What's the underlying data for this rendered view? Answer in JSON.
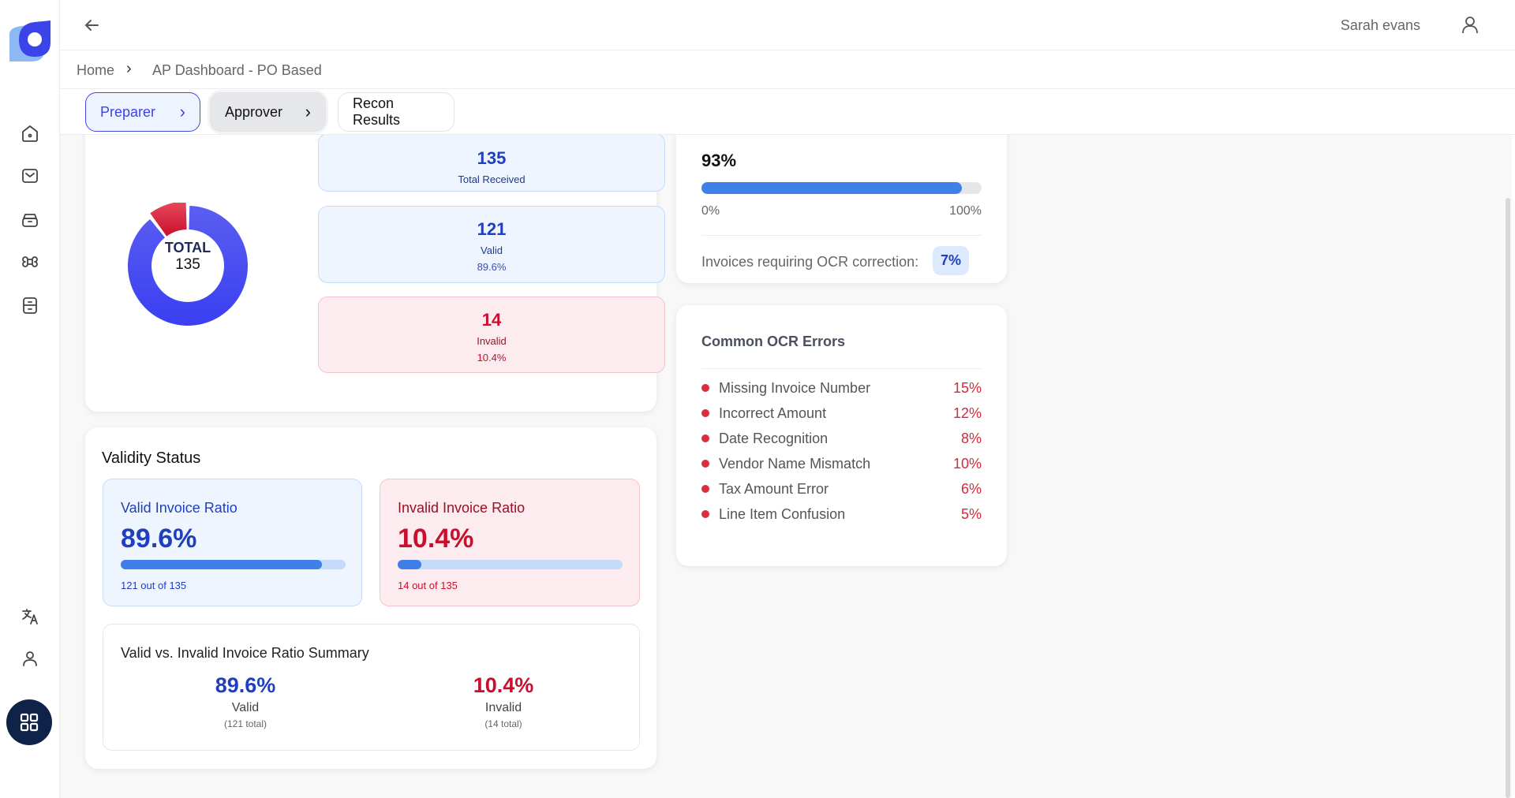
{
  "header": {
    "user_name": "Sarah evans"
  },
  "breadcrumb": {
    "home": "Home",
    "current": "AP Dashboard - PO Based"
  },
  "tabs": [
    {
      "label": "Preparer"
    },
    {
      "label": "Approver"
    },
    {
      "label": "Recon Results"
    }
  ],
  "summary": {
    "donut_label": "TOTAL",
    "donut_value": "135",
    "chart_data": {
      "type": "pie",
      "series": [
        {
          "name": "Valid",
          "value": 121
        },
        {
          "name": "Invalid",
          "value": 14
        }
      ]
    },
    "total": {
      "value": "135",
      "label": "Total Received"
    },
    "valid": {
      "value": "121",
      "label": "Valid",
      "pct": "89.6%"
    },
    "invalid": {
      "value": "14",
      "label": "Invalid",
      "pct": "10.4%"
    }
  },
  "accuracy": {
    "value": "93%",
    "progress": 93,
    "min": "0%",
    "max": "100%",
    "ocr_label": "Invoices requiring OCR correction:",
    "ocr_value": "7%"
  },
  "ocr_errors": {
    "title": "Common OCR Errors",
    "items": [
      {
        "label": "Missing Invoice Number",
        "pct": "15%"
      },
      {
        "label": "Incorrect Amount",
        "pct": "12%"
      },
      {
        "label": "Date Recognition",
        "pct": "8%"
      },
      {
        "label": "Vendor Name Mismatch",
        "pct": "10%"
      },
      {
        "label": "Tax Amount Error",
        "pct": "6%"
      },
      {
        "label": "Line Item Confusion",
        "pct": "5%"
      }
    ]
  },
  "validity": {
    "title": "Validity Status",
    "valid": {
      "title": "Valid Invoice Ratio",
      "pct": "89.6%",
      "progress": 89.6,
      "sub": "121 out of 135"
    },
    "invalid": {
      "title": "Invalid Invoice Ratio",
      "pct": "10.4%",
      "progress": 10.4,
      "sub": "14 out of 135"
    },
    "summary": {
      "title": "Valid vs. Invalid Invoice Ratio Summary",
      "valid": {
        "pct": "89.6%",
        "label": "Valid",
        "total": "(121 total)"
      },
      "invalid": {
        "pct": "10.4%",
        "label": "Invalid",
        "total": "(14 total)"
      }
    }
  },
  "colors": {
    "accent": "#3b44e8",
    "valid": "#1f3fbf",
    "invalid": "#c8102e",
    "bar": "#3f7fe8"
  }
}
